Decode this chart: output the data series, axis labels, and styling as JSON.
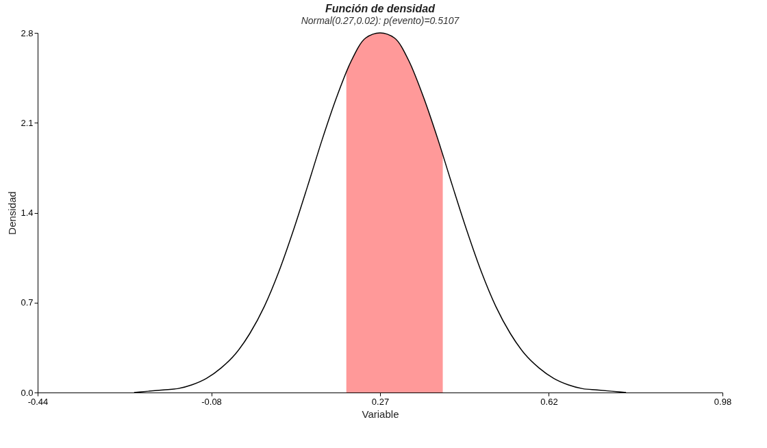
{
  "chart_data": {
    "type": "line",
    "title": "Función de densidad",
    "subtitle": "Normal(0.27,0.02): p(evento)=0.5107",
    "xlabel": "Variable",
    "ylabel": "Densidad",
    "xlim": [
      -0.44,
      0.98
    ],
    "xticks": [
      -0.44,
      -0.08,
      0.27,
      0.62,
      0.98
    ],
    "ylim": [
      0,
      2.8
    ],
    "yticks": [
      {
        "value": 0,
        "label": "0.0"
      },
      0.7,
      1.4,
      2.1,
      2.8
    ],
    "grid": false,
    "legend": false,
    "marker": "none",
    "line_style": "solid",
    "series": [
      {
        "type": "area",
        "color": "#ff9999",
        "x": [
          0.2,
          0.21,
          0.24,
          0.27,
          0.3,
          0.33,
          0.36,
          0.39,
          0.4
        ],
        "values": [
          2.5,
          2.58,
          2.76,
          2.8,
          2.76,
          2.58,
          2.3,
          1.97,
          1.85
        ]
      },
      {
        "color": "#000000",
        "x": [
          -0.24,
          -0.21,
          -0.18,
          -0.15,
          -0.12,
          -0.09,
          -0.06,
          -0.03,
          0.0,
          0.03,
          0.06,
          0.09,
          0.12,
          0.15,
          0.18,
          0.21,
          0.24,
          0.27,
          0.3,
          0.33,
          0.36,
          0.39,
          0.42,
          0.45,
          0.48,
          0.51,
          0.54,
          0.57,
          0.6,
          0.63,
          0.66,
          0.69,
          0.72,
          0.75,
          0.78
        ],
        "values": [
          0.0,
          0.01,
          0.02,
          0.03,
          0.06,
          0.11,
          0.19,
          0.3,
          0.46,
          0.67,
          0.94,
          1.26,
          1.61,
          1.97,
          2.3,
          2.58,
          2.76,
          2.8,
          2.76,
          2.58,
          2.3,
          1.97,
          1.61,
          1.26,
          0.94,
          0.67,
          0.46,
          0.3,
          0.19,
          0.11,
          0.06,
          0.03,
          0.02,
          0.01,
          0.0
        ]
      }
    ]
  }
}
